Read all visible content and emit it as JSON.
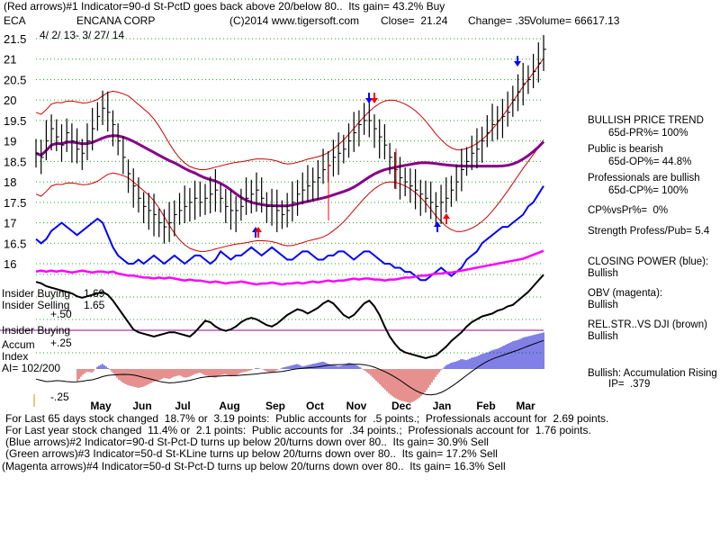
{
  "header": {
    "line1": "(Red arrows)#1 Indicator=90-d St-PctD goes back above 20/below 80..  Its gain= 43.2% Buy",
    "symbol": "ECA",
    "company": "ENCANA CORP",
    "source": "(C)2014 www.tigersoft.com",
    "close_text": "Close=  21.24",
    "change_text": "Change= .35",
    "volume_text": "Volume= 66617.13",
    "dates": "4/ 2/ 13- 3/ 27/ 14"
  },
  "left_labels": {
    "insider_buying": "Insider Buying",
    "insider_buying_value": "1.69",
    "insider_selling": "Insider Selling",
    "insider_selling_value": "1.65",
    "plus50": "+.50",
    "insider_buying2": "Insider Buying",
    "accum": "Accum",
    "plus25": "+.25",
    "index": "Index",
    "ai": "AI= 102/200",
    "minus25": "-.25"
  },
  "right_panel": {
    "bullish_trend": "BULLISH PRICE TREND",
    "pr_line": "65d-PR%= 100%",
    "public_bearish": "Public is bearish",
    "op_line": "65d-OP%= 44.8%",
    "professionals_bullish": "Professionals are bullish",
    "cp_line": "65d-CP%= 100%",
    "cpvspr": "CP%vsPr%=  0%",
    "strength": "Strength Profess/Pub= 5.4",
    "closing_power": "CLOSING POWER (blue):",
    "cp_bullish": "Bullish",
    "obv": "OBV (magenta):",
    "obv_bullish": "Bullish",
    "relstr": "REL.STR..VS DJI (brown)",
    "relstr_bullish": "Bullish",
    "accum_rising": "Bullish: Accumulation Rising",
    "ip": "IP=  .379"
  },
  "footer": [
    "For Last 65 days stock changed  18.7% or  3.19 points:  Public accounts for  .5 points.;  Professionals account for  2.69 points.",
    "For Last year stock changed  11.4% or  2.1 points:  Public accounts for  .34 points.;  Professionals account for  1.76 points.",
    "(Blue arrows)#2 Indicator=90-d St-Pct-D turns up below 20/turns down over 80..  Its gain= 30.9% Sell",
    "(Green arrows)#3 Indicator=50-d St-KLine turns up below 20/turns down over 80..  Its gain= 17.2% Sell",
    "(Magenta arrows)#4 Indicator=50-d St-Pct-D turns up below 20/turns down over 80..  Its gain= 16.3% Sell"
  ],
  "chart_data": {
    "type": "line",
    "price_axis": {
      "ticks": [
        21.5,
        21,
        20.5,
        20,
        19.5,
        19,
        18.5,
        18,
        17.5,
        17,
        16.5,
        16
      ],
      "tick_labels": [
        "21.5",
        "21",
        "20.5",
        "20",
        "19.5",
        "19",
        "18.5",
        "18",
        "17.5",
        "17",
        "16.5",
        "16"
      ]
    },
    "x_labels": [
      "May",
      "Jun",
      "Jul",
      "Aug",
      "Sep",
      "Oct",
      "Nov",
      "Dec",
      "Jan",
      "Feb",
      "Mar"
    ],
    "grid": true,
    "series": [
      {
        "key": "price_close",
        "values": [
          18.7,
          18.6,
          19.0,
          19.3,
          19.1,
          18.9,
          19.2,
          19.0,
          18.8,
          18.7,
          19.0,
          19.3,
          19.6,
          19.8,
          19.7,
          19.4,
          19.0,
          18.6,
          18.2,
          17.9,
          17.6,
          17.4,
          17.3,
          17.2,
          17.0,
          16.9,
          17.0,
          17.2,
          17.3,
          17.4,
          17.5,
          17.6,
          17.5,
          17.6,
          17.7,
          17.8,
          17.6,
          17.4,
          17.3,
          17.3,
          17.4,
          17.6,
          17.7,
          17.8,
          17.6,
          17.4,
          17.4,
          17.3,
          17.2,
          17.3,
          17.5,
          17.7,
          17.8,
          17.9,
          18.0,
          18.1,
          18.3,
          18.4,
          18.6,
          18.7,
          18.8,
          19.0,
          19.2,
          19.4,
          19.5,
          19.5,
          19.3,
          19.1,
          18.9,
          18.6,
          18.3,
          18.1,
          18.0,
          17.9,
          17.8,
          17.7,
          17.6,
          17.5,
          17.4,
          17.5,
          17.6,
          17.8,
          18.0,
          18.3,
          18.5,
          18.7,
          18.8,
          19.0,
          19.2,
          19.4,
          19.5,
          19.6,
          19.7,
          20.0,
          20.2,
          20.4,
          20.5,
          20.7,
          20.9,
          21.24
        ],
        "color": "#000000"
      },
      {
        "key": "closing_power",
        "values": [
          16.6,
          16.5,
          16.6,
          16.8,
          16.9,
          17.0,
          16.9,
          16.8,
          16.7,
          16.8,
          16.9,
          17.0,
          17.1,
          17.0,
          16.7,
          16.4,
          16.2,
          16.1,
          16.0,
          16.0,
          16.1,
          16.0,
          16.1,
          16.2,
          16.1,
          16.0,
          16.1,
          16.2,
          16.1,
          16.0,
          16.1,
          16.2,
          16.2,
          16.1,
          16.0,
          16.1,
          16.3,
          16.2,
          16.1,
          16.2,
          16.2,
          16.3,
          16.4,
          16.3,
          16.2,
          16.3,
          16.4,
          16.3,
          16.2,
          16.1,
          16.1,
          16.2,
          16.3,
          16.3,
          16.2,
          16.1,
          16.1,
          16.2,
          16.2,
          16.3,
          16.3,
          16.2,
          16.1,
          16.2,
          16.3,
          16.3,
          16.2,
          16.1,
          16.0,
          16.0,
          15.9,
          15.9,
          15.8,
          15.8,
          15.7,
          15.6,
          15.6,
          15.7,
          15.8,
          15.9,
          15.8,
          15.7,
          15.8,
          15.9,
          16.1,
          16.2,
          16.3,
          16.5,
          16.6,
          16.7,
          16.8,
          16.9,
          16.9,
          17.0,
          17.1,
          17.2,
          17.4,
          17.5,
          17.7,
          17.9
        ],
        "color": "#0000ff"
      },
      {
        "key": "obv",
        "values": [
          0.62,
          0.63,
          0.62,
          0.63,
          0.62,
          0.63,
          0.62,
          0.61,
          0.62,
          0.63,
          0.62,
          0.61,
          0.62,
          0.62,
          0.61,
          0.62,
          0.6,
          0.59,
          0.58,
          0.58,
          0.57,
          0.56,
          0.56,
          0.55,
          0.56,
          0.55,
          0.56,
          0.55,
          0.54,
          0.53,
          0.54,
          0.53,
          0.53,
          0.52,
          0.51,
          0.52,
          0.51,
          0.5,
          0.51,
          0.51,
          0.52,
          0.51,
          0.5,
          0.49,
          0.5,
          0.5,
          0.51,
          0.5,
          0.49,
          0.5,
          0.5,
          0.51,
          0.5,
          0.51,
          0.52,
          0.51,
          0.52,
          0.53,
          0.52,
          0.53,
          0.53,
          0.54,
          0.55,
          0.54,
          0.55,
          0.55,
          0.54,
          0.54,
          0.53,
          0.54,
          0.54,
          0.55,
          0.56,
          0.56,
          0.57,
          0.58,
          0.58,
          0.59,
          0.6,
          0.6,
          0.61,
          0.61,
          0.62,
          0.63,
          0.64,
          0.65,
          0.66,
          0.67,
          0.68,
          0.69,
          0.7,
          0.71,
          0.72,
          0.73,
          0.74,
          0.75,
          0.77,
          0.79,
          0.81,
          0.83
        ],
        "color": "#ff00ff"
      },
      {
        "key": "relative_strength",
        "values": [
          0.53,
          0.52,
          0.5,
          0.49,
          0.48,
          0.47,
          0.46,
          0.45,
          0.43,
          0.42,
          0.43,
          0.44,
          0.45,
          0.46,
          0.44,
          0.4,
          0.35,
          0.3,
          0.25,
          0.2,
          0.18,
          0.17,
          0.16,
          0.15,
          0.16,
          0.17,
          0.18,
          0.18,
          0.17,
          0.16,
          0.15,
          0.18,
          0.22,
          0.26,
          0.25,
          0.22,
          0.2,
          0.19,
          0.2,
          0.22,
          0.25,
          0.27,
          0.28,
          0.27,
          0.25,
          0.23,
          0.22,
          0.24,
          0.27,
          0.3,
          0.32,
          0.34,
          0.33,
          0.31,
          0.33,
          0.35,
          0.38,
          0.4,
          0.38,
          0.34,
          0.3,
          0.28,
          0.3,
          0.34,
          0.38,
          0.4,
          0.36,
          0.3,
          0.22,
          0.15,
          0.1,
          0.06,
          0.04,
          0.03,
          0.02,
          0.01,
          0.0,
          0.01,
          0.02,
          0.05,
          0.08,
          0.12,
          0.15,
          0.18,
          0.22,
          0.25,
          0.27,
          0.29,
          0.3,
          0.31,
          0.33,
          0.34,
          0.36,
          0.37,
          0.4,
          0.43,
          0.46,
          0.5,
          0.54,
          0.58
        ],
        "color": "#000000"
      },
      {
        "key": "accumulation_index",
        "values": [
          -0.08,
          -0.1,
          -0.12,
          -0.09,
          -0.07,
          -0.11,
          -0.13,
          -0.12,
          -0.1,
          -0.05,
          -0.02,
          -0.03,
          0.02,
          0.04,
          0.01,
          -0.03,
          -0.08,
          -0.11,
          -0.13,
          -0.14,
          -0.15,
          -0.14,
          -0.12,
          -0.1,
          -0.09,
          -0.07,
          -0.08,
          -0.06,
          -0.05,
          -0.07,
          -0.06,
          -0.04,
          -0.03,
          -0.05,
          -0.06,
          -0.07,
          -0.05,
          -0.04,
          -0.06,
          -0.05,
          -0.03,
          -0.02,
          -0.01,
          0.01,
          0.0,
          -0.02,
          -0.03,
          -0.01,
          0.01,
          0.02,
          0.03,
          0.04,
          0.02,
          0.03,
          0.04,
          0.05,
          0.06,
          0.04,
          0.03,
          0.02,
          0.03,
          0.05,
          0.04,
          0.02,
          -0.01,
          -0.04,
          -0.08,
          -0.12,
          -0.16,
          -0.2,
          -0.23,
          -0.25,
          -0.26,
          -0.27,
          -0.25,
          -0.22,
          -0.18,
          -0.12,
          -0.06,
          -0.01,
          0.03,
          0.05,
          0.06,
          0.08,
          0.07,
          0.09,
          0.1,
          0.12,
          0.13,
          0.15,
          0.16,
          0.18,
          0.2,
          0.22,
          0.23,
          0.25,
          0.26,
          0.27,
          0.28,
          0.29
        ],
        "color": "#0000cc"
      }
    ]
  }
}
